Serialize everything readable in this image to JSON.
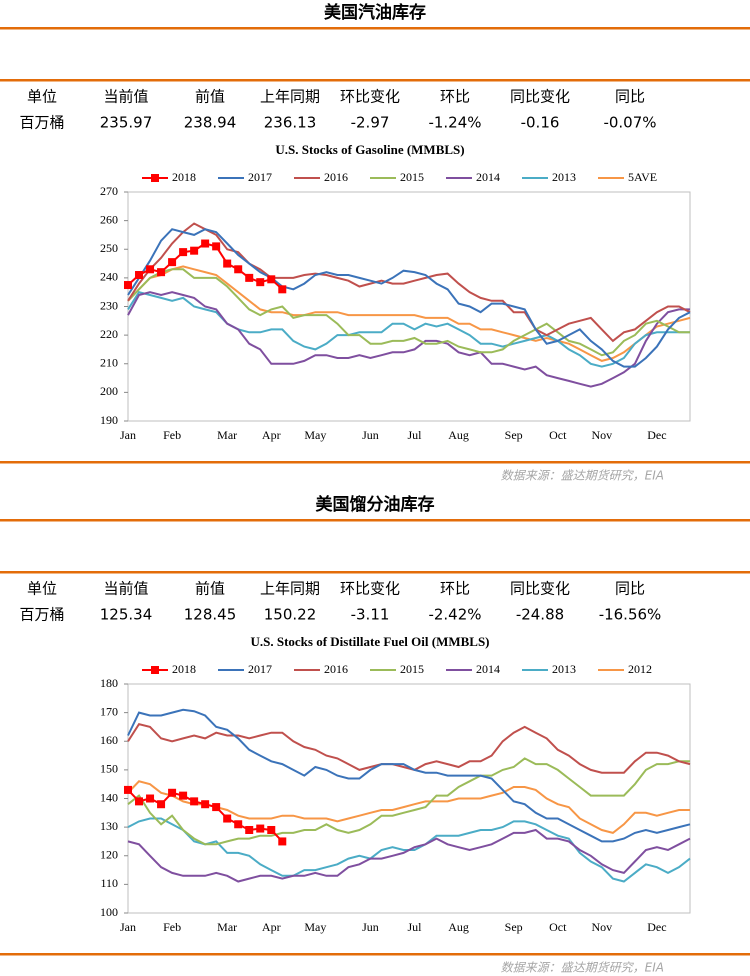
{
  "sections": [
    {
      "title": "美国汽油库存",
      "table": {
        "header": [
          "单位",
          "当前值",
          "前值",
          "上年同期",
          "环比变化",
          "环比",
          "同比变化",
          "同比"
        ],
        "row": [
          "百万桶",
          "235.97",
          "238.94",
          "236.13",
          "-2.97",
          "-1.24%",
          "-0.16",
          "-0.07%"
        ]
      },
      "source": "数据来源：盛达期货研究，EIA"
    },
    {
      "title": "美国馏分油库存",
      "table": {
        "header": [
          "单位",
          "当前值",
          "前值",
          "上年同期",
          "环比变化",
          "环比",
          "同比变化",
          "同比"
        ],
        "row": [
          "百万桶",
          "125.34",
          "128.45",
          "150.22",
          "-3.11",
          "-2.42%",
          "-24.88",
          "-16.56%"
        ]
      },
      "source": "数据来源：盛达期货研究，EIA"
    }
  ],
  "chart_data": [
    {
      "type": "line",
      "title": "U.S.  Stocks of  Gasoline (MMBLS)",
      "categories": [
        "Jan",
        null,
        null,
        null,
        "Feb",
        null,
        null,
        null,
        null,
        "Mar",
        null,
        null,
        null,
        "Apr",
        null,
        null,
        null,
        "May",
        null,
        null,
        null,
        null,
        "Jun",
        null,
        null,
        null,
        "Jul",
        null,
        null,
        null,
        "Aug",
        null,
        null,
        null,
        null,
        "Sep",
        null,
        null,
        null,
        "Oct",
        null,
        null,
        null,
        "Nov",
        null,
        null,
        null,
        null,
        "Dec",
        null,
        null,
        null
      ],
      "ylim": [
        190,
        270
      ],
      "yticks": [
        190,
        200,
        210,
        220,
        230,
        240,
        250,
        260,
        270
      ],
      "series": [
        {
          "name": "2018",
          "color": "#ff0000",
          "marker": "square",
          "values": [
            237.5,
            241,
            243,
            242,
            245.5,
            249,
            249.5,
            252,
            251,
            245,
            243,
            240,
            238.5,
            239.5,
            236,
            null,
            null,
            null,
            null,
            null,
            null,
            null,
            null,
            null,
            null,
            null,
            null,
            null,
            null,
            null,
            null,
            null,
            null,
            null,
            null,
            null,
            null,
            null,
            null,
            null,
            null,
            null,
            null,
            null,
            null,
            null,
            null,
            null,
            null,
            null,
            null,
            null
          ]
        },
        {
          "name": "2017",
          "color": "#3b73b9",
          "values": [
            234,
            240,
            246,
            253,
            257,
            256,
            255,
            257,
            256,
            252,
            248,
            245,
            242,
            240,
            237,
            236,
            238,
            241,
            242,
            241,
            241,
            240,
            239,
            238,
            240,
            242.5,
            242,
            241,
            238,
            236,
            231,
            230,
            228,
            231,
            231,
            230,
            229,
            222,
            217,
            218,
            220,
            222,
            218,
            215,
            211,
            209,
            209,
            212,
            216,
            222,
            226,
            228
          ]
        },
        {
          "name": "2016",
          "color": "#c0504d",
          "values": [
            232,
            238,
            243,
            247,
            252,
            256,
            259,
            257,
            255,
            250,
            249,
            245,
            243,
            240,
            240,
            240,
            241,
            241.5,
            241,
            240,
            239,
            237,
            238,
            239,
            238,
            238,
            239,
            240,
            241,
            241.5,
            238,
            235,
            233,
            232,
            232,
            228,
            228,
            222,
            220,
            222,
            224,
            225,
            226,
            222,
            218,
            221,
            222,
            225,
            228,
            230,
            230,
            228
          ]
        },
        {
          "name": "2015",
          "color": "#9bbb59",
          "values": [
            232,
            236,
            240,
            242,
            243,
            243,
            240,
            240,
            240,
            237,
            233,
            229,
            227,
            229,
            230,
            226,
            227,
            227,
            227,
            224,
            220,
            220,
            217,
            217,
            218,
            218,
            219,
            217,
            217,
            218,
            216,
            215,
            214,
            214,
            215,
            218,
            220,
            222,
            224,
            221,
            218,
            217,
            215,
            213,
            214,
            218,
            220,
            224,
            225,
            223,
            221,
            221
          ]
        },
        {
          "name": "2014",
          "color": "#7f4f9f",
          "values": [
            227,
            234,
            235,
            234,
            235,
            234,
            233,
            230,
            229,
            224,
            222,
            217,
            215,
            210,
            210,
            210,
            211,
            213,
            213,
            212,
            212,
            213,
            212,
            213,
            214,
            214,
            215,
            218,
            218,
            217,
            214,
            213,
            214,
            210,
            210,
            209,
            208,
            209,
            206,
            205,
            204,
            203,
            202,
            203,
            205,
            207,
            210,
            218,
            224,
            228,
            229,
            229
          ]
        },
        {
          "name": "2013",
          "color": "#4bacc6",
          "values": [
            229,
            235,
            234,
            233,
            232,
            233,
            230,
            229,
            228,
            224,
            222,
            221,
            221,
            222,
            222,
            218,
            216,
            215,
            217,
            220,
            220,
            221,
            221,
            221,
            224,
            224,
            222,
            224,
            223,
            224,
            222,
            220,
            217,
            217,
            216,
            217,
            218,
            219,
            220,
            218,
            215,
            213,
            210,
            209,
            210,
            212,
            217,
            220,
            221,
            221,
            221,
            221
          ]
        },
        {
          "name": "5AVE",
          "color": "#f79646",
          "values": [
            232,
            236,
            240,
            241,
            243,
            244,
            243,
            242,
            241,
            238,
            235,
            232,
            229,
            228,
            228,
            227,
            227,
            228,
            228,
            228,
            227,
            227,
            227,
            227,
            227,
            227,
            227,
            226,
            226,
            226,
            224,
            224,
            222,
            222,
            221,
            220,
            219,
            218,
            219,
            218,
            217,
            215,
            213,
            211,
            212,
            214,
            217,
            220,
            223,
            224,
            225,
            226
          ]
        }
      ]
    },
    {
      "type": "line",
      "title": "U.S.  Stocks of Distillate Fuel Oil (MMBLS)",
      "categories": [
        "Jan",
        null,
        null,
        null,
        "Feb",
        null,
        null,
        null,
        null,
        "Mar",
        null,
        null,
        null,
        "Apr",
        null,
        null,
        null,
        "May",
        null,
        null,
        null,
        null,
        "Jun",
        null,
        null,
        null,
        "Jul",
        null,
        null,
        null,
        "Aug",
        null,
        null,
        null,
        null,
        "Sep",
        null,
        null,
        null,
        "Oct",
        null,
        null,
        null,
        "Nov",
        null,
        null,
        null,
        null,
        "Dec",
        null,
        null,
        null
      ],
      "ylim": [
        100,
        180
      ],
      "yticks": [
        100,
        110,
        120,
        130,
        140,
        150,
        160,
        170,
        180
      ],
      "series": [
        {
          "name": "2018",
          "color": "#ff0000",
          "marker": "square",
          "values": [
            143,
            139,
            140,
            138,
            142,
            141,
            139,
            138,
            137,
            133,
            131,
            129,
            129.5,
            129,
            125,
            null,
            null,
            null,
            null,
            null,
            null,
            null,
            null,
            null,
            null,
            null,
            null,
            null,
            null,
            null,
            null,
            null,
            null,
            null,
            null,
            null,
            null,
            null,
            null,
            null,
            null,
            null,
            null,
            null,
            null,
            null,
            null,
            null,
            null,
            null,
            null,
            null
          ]
        },
        {
          "name": "2017",
          "color": "#3b73b9",
          "values": [
            162,
            170,
            169,
            169,
            170,
            171,
            170.5,
            169,
            165,
            164,
            161,
            157,
            155,
            153,
            152,
            150,
            148,
            151,
            150,
            148,
            147,
            147,
            150,
            152,
            152,
            152,
            150,
            149,
            149,
            148,
            148,
            148,
            148,
            147,
            143,
            139,
            138,
            135,
            133,
            133,
            131,
            129,
            127,
            125,
            125,
            126,
            128,
            129,
            128,
            129,
            130,
            131
          ]
        },
        {
          "name": "2016",
          "color": "#c0504d",
          "values": [
            160,
            166,
            165,
            161,
            160,
            161,
            162,
            161,
            163,
            162,
            162,
            161,
            162,
            163,
            163,
            160,
            158,
            157,
            155,
            154,
            152,
            150,
            151,
            152,
            152,
            151,
            150,
            152,
            153,
            152,
            151,
            153,
            153,
            155,
            160,
            163,
            165,
            163,
            161,
            157,
            155,
            152,
            150,
            149,
            149,
            149,
            153,
            156,
            156,
            155,
            153,
            152
          ]
        },
        {
          "name": "2015",
          "color": "#9bbb59",
          "values": [
            138,
            141,
            135,
            131,
            134,
            129,
            126,
            124,
            124,
            125,
            126,
            126,
            127,
            127,
            128,
            128,
            129,
            129,
            131,
            129,
            128,
            129,
            131,
            134,
            134,
            135,
            136,
            137,
            141,
            141,
            144,
            146,
            148,
            148,
            150,
            151,
            154,
            152,
            152,
            150,
            147,
            144,
            141,
            141,
            141,
            141,
            145,
            150,
            152,
            152,
            153,
            153
          ]
        },
        {
          "name": "2014",
          "color": "#7f4f9f",
          "values": [
            125,
            124,
            120,
            116,
            114,
            113,
            113,
            113,
            114,
            113,
            111,
            112,
            113,
            113,
            112,
            113,
            113,
            114,
            113,
            113,
            116,
            117,
            119,
            119,
            120,
            121,
            123,
            124,
            126,
            124,
            123,
            122,
            123,
            124,
            126,
            128,
            128,
            129,
            126,
            126,
            125,
            122,
            120,
            117,
            115,
            114,
            118,
            122,
            123,
            122,
            124,
            126
          ]
        },
        {
          "name": "2013",
          "color": "#4bacc6",
          "values": [
            130,
            132,
            133,
            133,
            131,
            129,
            125,
            124,
            125,
            121,
            121,
            120,
            117,
            115,
            113,
            113,
            115,
            115,
            116,
            117,
            119,
            120,
            119,
            122,
            123,
            122,
            122,
            124,
            127,
            127,
            127,
            128,
            129,
            129,
            130,
            132,
            132,
            131,
            129,
            127,
            126,
            121,
            118,
            116,
            112,
            111,
            114,
            117,
            116,
            114,
            116,
            119
          ]
        },
        {
          "name": "2012",
          "color": "#f79646",
          "values": [
            142,
            146,
            145,
            142,
            141,
            139,
            138,
            138,
            137,
            136,
            134,
            133,
            133,
            133,
            134,
            134,
            133,
            133,
            133,
            132,
            133,
            134,
            135,
            136,
            136,
            137,
            138,
            139,
            139,
            139,
            140,
            140,
            140,
            141,
            142,
            144,
            144,
            143,
            140,
            138,
            137,
            133,
            131,
            129,
            128,
            131,
            135,
            135,
            134,
            135,
            136,
            136
          ]
        }
      ]
    }
  ]
}
